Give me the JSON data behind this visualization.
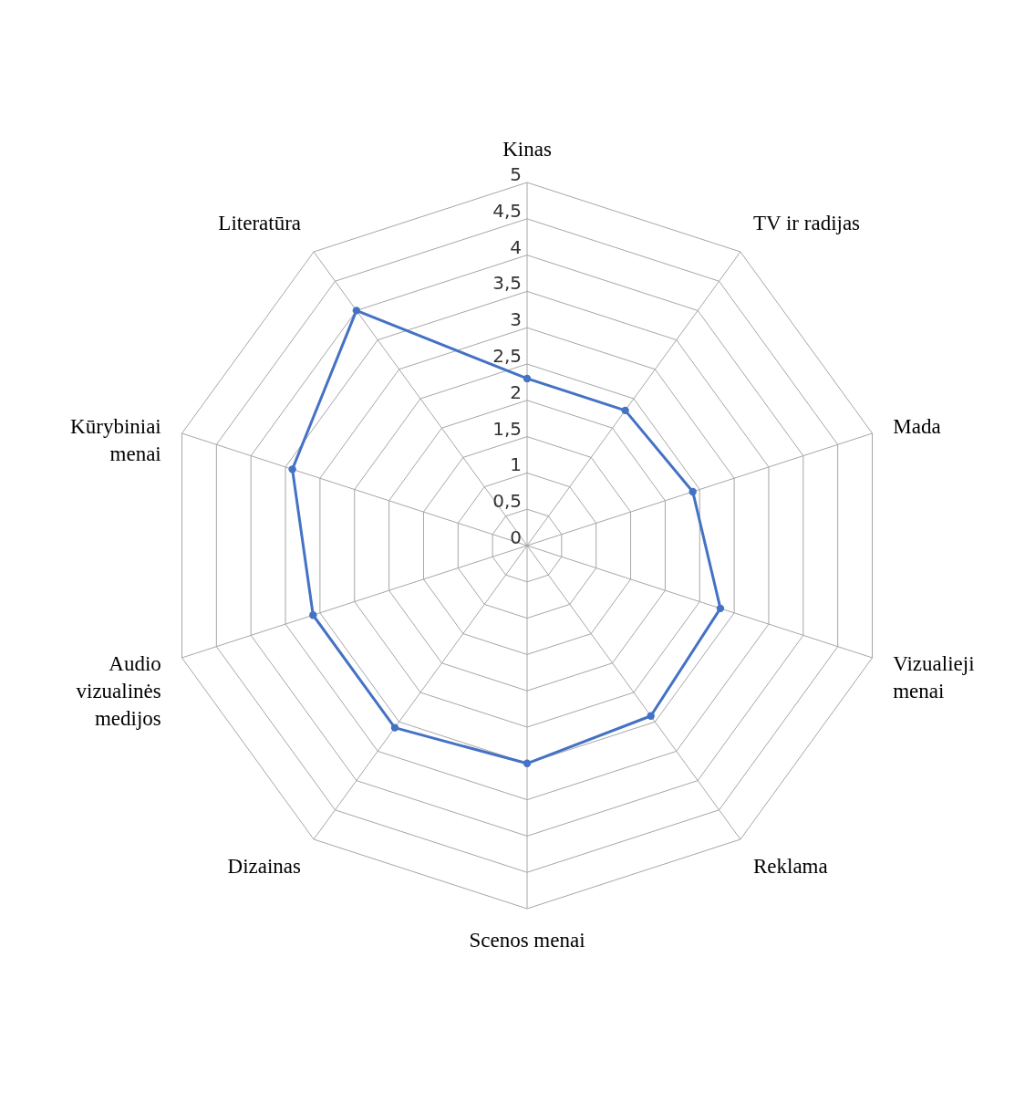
{
  "chart_data": {
    "type": "radar",
    "categories": [
      "Kinas",
      "TV ir radijas",
      "Mada",
      "Vizualieji menai",
      "Reklama",
      "Scenos menai",
      "Dizainas",
      "Audio vizualinės medijos",
      "Kūrybiniai menai",
      "Literatūra"
    ],
    "series": [
      {
        "color": "#4472c4",
        "values": [
          2.3,
          2.3,
          2.4,
          2.8,
          2.9,
          3.0,
          3.1,
          3.1,
          3.4,
          4.0
        ]
      }
    ],
    "ylim": [
      0,
      5
    ],
    "yticks": [
      0,
      {
        "value": 0.5,
        "label": "0,5"
      },
      1,
      {
        "value": 1.5,
        "label": "1,5"
      },
      2,
      {
        "value": 2.5,
        "label": "2,5"
      },
      3,
      {
        "value": 3.5,
        "label": "3,5"
      },
      4,
      {
        "value": 4.5,
        "label": "4,5"
      },
      5
    ],
    "grid": true,
    "marker": "circle"
  }
}
